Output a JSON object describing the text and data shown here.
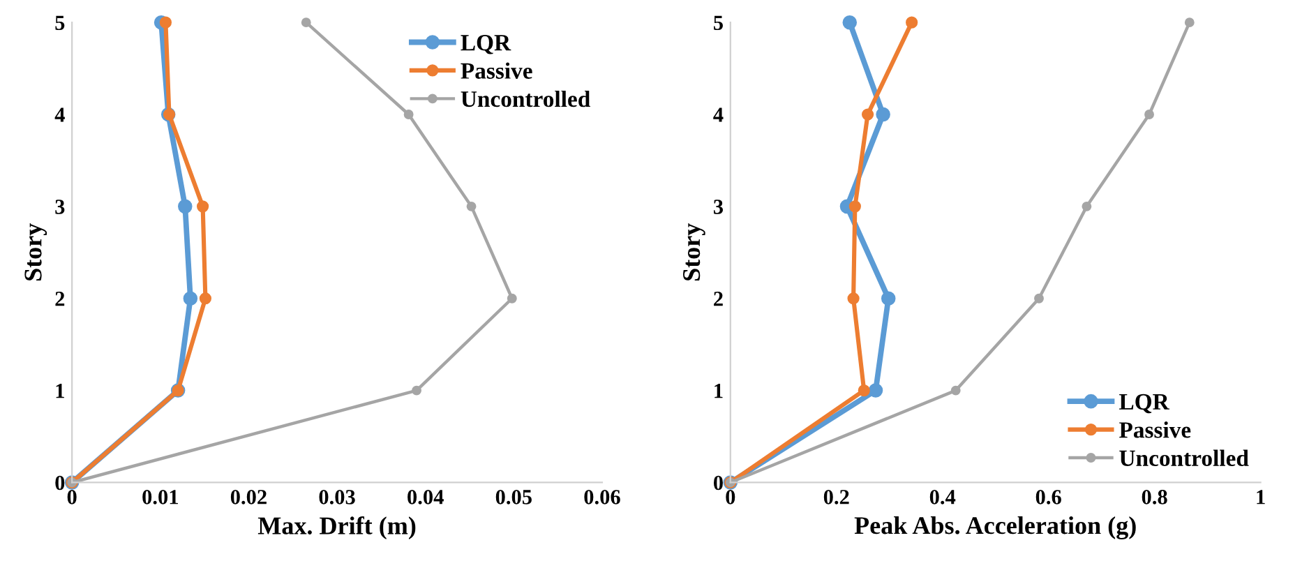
{
  "chart_data": [
    {
      "type": "line",
      "xlabel": "Max. Drift (m)",
      "ylabel": "Story",
      "xlim": [
        0,
        0.06
      ],
      "xticks": [
        0,
        0.01,
        0.02,
        0.03,
        0.04,
        0.05,
        0.06
      ],
      "ylim": [
        0,
        5
      ],
      "yticks": [
        0,
        1,
        2,
        3,
        4,
        5
      ],
      "grid": false,
      "legend": "top right",
      "marker": "circle",
      "series": [
        {
          "name": "LQR",
          "color": "#5b9bd5",
          "x": [
            0,
            0.012,
            0.0134,
            0.0128,
            0.0109,
            0.0101
          ],
          "values": [
            0,
            1,
            2,
            3,
            4,
            5
          ]
        },
        {
          "name": "Passive",
          "color": "#ed7d31",
          "x": [
            0,
            0.012,
            0.0151,
            0.0148,
            0.011,
            0.0106
          ],
          "values": [
            0,
            1,
            2,
            3,
            4,
            5
          ]
        },
        {
          "name": "Uncontrolled",
          "color": "#a5a5a5",
          "x": [
            0,
            0.039,
            0.0498,
            0.0452,
            0.0381,
            0.0265
          ],
          "values": [
            0,
            1,
            2,
            3,
            4,
            5
          ]
        }
      ]
    },
    {
      "type": "line",
      "xlabel": "Peak Abs. Acceleration (g)",
      "ylabel": "Story",
      "xlim": [
        0,
        1
      ],
      "xticks": [
        0,
        0.2,
        0.4,
        0.6,
        0.8,
        1
      ],
      "ylim": [
        0,
        5
      ],
      "yticks": [
        0,
        1,
        2,
        3,
        4,
        5
      ],
      "grid": false,
      "legend": "bottom right",
      "marker": "circle",
      "series": [
        {
          "name": "LQR",
          "color": "#5b9bd5",
          "x": [
            0,
            0.274,
            0.298,
            0.22,
            0.288,
            0.225
          ],
          "values": [
            0,
            1,
            2,
            3,
            4,
            5
          ]
        },
        {
          "name": "Passive",
          "color": "#ed7d31",
          "x": [
            0,
            0.252,
            0.232,
            0.235,
            0.259,
            0.342
          ],
          "values": [
            0,
            1,
            2,
            3,
            4,
            5
          ]
        },
        {
          "name": "Uncontrolled",
          "color": "#a5a5a5",
          "x": [
            0,
            0.425,
            0.582,
            0.672,
            0.79,
            0.866
          ],
          "values": [
            0,
            1,
            2,
            3,
            4,
            5
          ]
        }
      ]
    }
  ]
}
